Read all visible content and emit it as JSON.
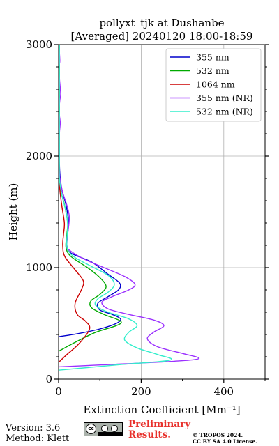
{
  "chart_data": {
    "type": "line",
    "title": "pollyxt_tjk at Dushanbe",
    "subtitle": "[Averaged] 20240120 18:00-18:59",
    "xlabel": "Extinction Coefficient [Mm⁻¹]",
    "ylabel": "Height (m)",
    "xlim": [
      0,
      500
    ],
    "ylim": [
      0,
      3000
    ],
    "x_ticks": [
      "0",
      "200",
      "400"
    ],
    "y_ticks": [
      "0",
      "1000",
      "2000",
      "3000"
    ],
    "grid": true,
    "legend_position": "top-right",
    "series": [
      {
        "name": "355 nm",
        "color": "#0000cc",
        "points": [
          [
            0,
            380
          ],
          [
            50,
            410
          ],
          [
            100,
            450
          ],
          [
            140,
            500
          ],
          [
            150,
            540
          ],
          [
            130,
            580
          ],
          [
            100,
            620
          ],
          [
            95,
            680
          ],
          [
            120,
            740
          ],
          [
            145,
            800
          ],
          [
            148,
            860
          ],
          [
            120,
            940
          ],
          [
            80,
            1050
          ],
          [
            30,
            1130
          ],
          [
            20,
            1200
          ],
          [
            22,
            1300
          ],
          [
            24,
            1420
          ],
          [
            18,
            1560
          ],
          [
            8,
            1700
          ],
          [
            3,
            1850
          ],
          [
            2,
            2000
          ],
          [
            2,
            2500
          ],
          [
            2,
            3000
          ]
        ]
      },
      {
        "name": "532 nm",
        "color": "#00aa00",
        "points": [
          [
            0,
            250
          ],
          [
            40,
            330
          ],
          [
            90,
            420
          ],
          [
            140,
            480
          ],
          [
            150,
            520
          ],
          [
            110,
            580
          ],
          [
            80,
            640
          ],
          [
            78,
            700
          ],
          [
            100,
            760
          ],
          [
            115,
            830
          ],
          [
            100,
            910
          ],
          [
            70,
            1000
          ],
          [
            30,
            1100
          ],
          [
            18,
            1180
          ],
          [
            20,
            1300
          ],
          [
            22,
            1400
          ],
          [
            15,
            1550
          ],
          [
            5,
            1700
          ],
          [
            2,
            1850
          ],
          [
            2,
            2000
          ],
          [
            2,
            2500
          ],
          [
            2,
            3000
          ]
        ]
      },
      {
        "name": "1064 nm",
        "color": "#cc0000",
        "points": [
          [
            0,
            150
          ],
          [
            20,
            220
          ],
          [
            50,
            320
          ],
          [
            75,
            450
          ],
          [
            65,
            520
          ],
          [
            45,
            580
          ],
          [
            40,
            680
          ],
          [
            55,
            800
          ],
          [
            60,
            880
          ],
          [
            40,
            980
          ],
          [
            15,
            1100
          ],
          [
            10,
            1200
          ],
          [
            12,
            1300
          ],
          [
            14,
            1400
          ],
          [
            8,
            1550
          ],
          [
            3,
            1700
          ],
          [
            1,
            1850
          ],
          [
            1,
            2000
          ],
          [
            1,
            2500
          ],
          [
            1,
            3000
          ]
        ]
      },
      {
        "name": "355 nm (NR)",
        "color": "#9b30ff",
        "points": [
          [
            0,
            110
          ],
          [
            120,
            130
          ],
          [
            280,
            160
          ],
          [
            340,
            185
          ],
          [
            300,
            230
          ],
          [
            240,
            290
          ],
          [
            215,
            360
          ],
          [
            230,
            420
          ],
          [
            255,
            480
          ],
          [
            230,
            530
          ],
          [
            170,
            580
          ],
          [
            120,
            630
          ],
          [
            105,
            690
          ],
          [
            130,
            740
          ],
          [
            170,
            800
          ],
          [
            185,
            850
          ],
          [
            160,
            920
          ],
          [
            110,
            1000
          ],
          [
            60,
            1080
          ],
          [
            25,
            1160
          ],
          [
            20,
            1200
          ],
          [
            22,
            1300
          ],
          [
            26,
            1450
          ],
          [
            20,
            1560
          ],
          [
            8,
            1700
          ],
          [
            2,
            1850
          ],
          [
            2,
            2000
          ],
          [
            2,
            2200
          ],
          [
            4,
            2300
          ],
          [
            1,
            2400
          ],
          [
            3,
            2500
          ],
          [
            5,
            2560
          ],
          [
            2,
            2700
          ],
          [
            1,
            2800
          ],
          [
            3,
            2850
          ],
          [
            2,
            2930
          ],
          [
            1,
            3000
          ]
        ]
      },
      {
        "name": "532 nm (NR)",
        "color": "#33eecc",
        "points": [
          [
            0,
            80
          ],
          [
            150,
            130
          ],
          [
            270,
            170
          ],
          [
            240,
            220
          ],
          [
            190,
            280
          ],
          [
            160,
            350
          ],
          [
            170,
            420
          ],
          [
            190,
            480
          ],
          [
            170,
            540
          ],
          [
            120,
            600
          ],
          [
            90,
            660
          ],
          [
            95,
            720
          ],
          [
            120,
            780
          ],
          [
            135,
            850
          ],
          [
            120,
            930
          ],
          [
            80,
            1010
          ],
          [
            40,
            1090
          ],
          [
            22,
            1160
          ],
          [
            20,
            1250
          ],
          [
            22,
            1380
          ],
          [
            18,
            1500
          ],
          [
            8,
            1650
          ],
          [
            2,
            1800
          ],
          [
            2,
            2000
          ],
          [
            2,
            2500
          ],
          [
            2,
            3000
          ]
        ]
      }
    ]
  },
  "footer": {
    "version": "Version: 3.6",
    "method": "Method: Klett",
    "prelim_line1": "Preliminary",
    "prelim_line2": "Results.",
    "tropos_line1": "© TROPOS 2024.",
    "tropos_line2": "CC BY SA 4.0 License.",
    "cc_text": "cc"
  }
}
